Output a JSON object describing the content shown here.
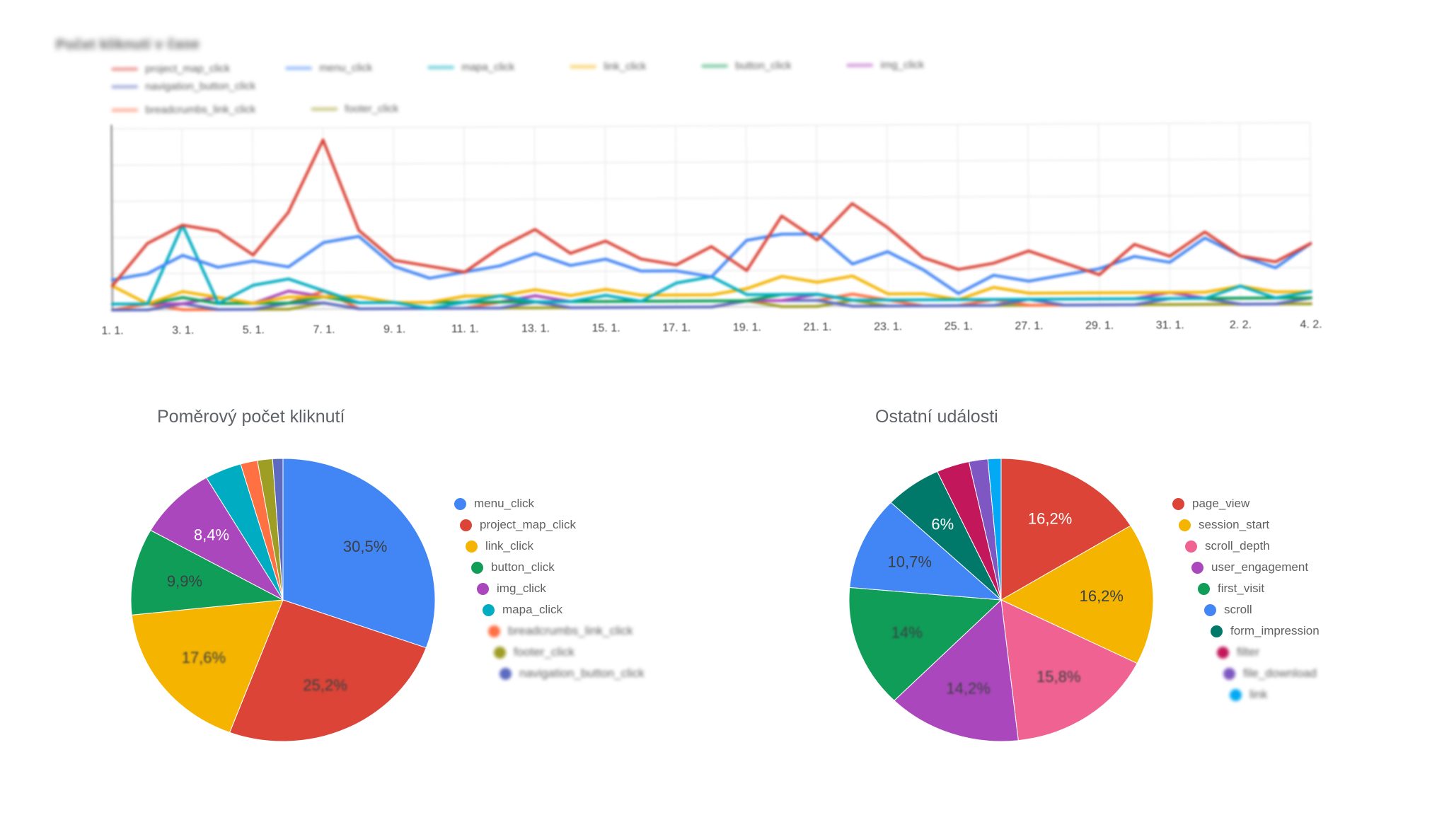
{
  "page": {
    "background": "#ffffff"
  },
  "chart_data": [
    {
      "id": "clicks-over-time",
      "type": "line",
      "title": "Počet kliknutí v čase",
      "xlabel": "",
      "ylabel": "",
      "ylim": [
        0,
        30
      ],
      "grid": true,
      "legend_position": "top",
      "x": [
        "1. 1.",
        "2. 1.",
        "3. 1.",
        "4. 1.",
        "5. 1.",
        "6. 1.",
        "7. 1.",
        "8. 1.",
        "9. 1.",
        "10. 1.",
        "11. 1.",
        "12. 1.",
        "13. 1.",
        "14. 1.",
        "15. 1.",
        "16. 1.",
        "17. 1.",
        "18. 1.",
        "19. 1.",
        "20. 1.",
        "21. 1.",
        "22. 1.",
        "23. 1.",
        "24. 1.",
        "25. 1.",
        "26. 1.",
        "27. 1.",
        "28. 1.",
        "29. 1.",
        "30. 1.",
        "31. 1.",
        "1. 2.",
        "2. 2.",
        "3. 2.",
        "4. 2."
      ],
      "x_tick_labels": [
        "1. 1.",
        "3. 1.",
        "5. 1.",
        "7. 1.",
        "9. 1.",
        "11. 1.",
        "13. 1.",
        "15. 1.",
        "17. 1.",
        "19. 1.",
        "21. 1.",
        "23. 1.",
        "25. 1.",
        "27. 1.",
        "29. 1.",
        "31. 1.",
        "2. 2.",
        "4. 2."
      ],
      "series": [
        {
          "name": "project_map_click",
          "color": "#DB4437",
          "values": [
            4,
            11,
            14,
            13,
            9,
            16,
            28,
            13,
            8,
            7,
            6,
            10,
            13,
            9,
            11,
            8,
            7,
            10,
            6,
            15,
            11,
            17,
            13,
            8,
            6,
            7,
            9,
            7,
            5,
            10,
            8,
            12,
            8,
            7,
            10
          ]
        },
        {
          "name": "menu_click",
          "color": "#4285F4",
          "values": [
            5,
            6,
            9,
            7,
            8,
            7,
            11,
            12,
            7,
            5,
            6,
            7,
            9,
            7,
            8,
            6,
            6,
            5,
            11,
            12,
            12,
            7,
            9,
            6,
            2,
            5,
            4,
            5,
            6,
            8,
            7,
            11,
            8,
            6,
            10
          ]
        },
        {
          "name": "mapa_click",
          "color": "#00ACC1",
          "values": [
            1,
            1,
            14,
            1,
            4,
            5,
            3,
            1,
            1,
            0,
            1,
            2,
            1,
            1,
            2,
            1,
            4,
            5,
            2,
            2,
            2,
            1,
            1,
            1,
            1,
            1,
            1,
            1,
            1,
            1,
            1,
            1,
            3,
            1,
            2
          ]
        },
        {
          "name": "link_click",
          "color": "#F4B400",
          "values": [
            4,
            1,
            3,
            2,
            1,
            2,
            2,
            2,
            1,
            1,
            2,
            2,
            3,
            2,
            3,
            2,
            2,
            2,
            3,
            5,
            4,
            5,
            2,
            2,
            1,
            3,
            2,
            2,
            2,
            2,
            2,
            2,
            3,
            2,
            2
          ]
        },
        {
          "name": "button_click",
          "color": "#0F9D58",
          "values": [
            1,
            1,
            2,
            1,
            1,
            1,
            2,
            1,
            1,
            1,
            1,
            1,
            1,
            1,
            1,
            1,
            1,
            1,
            1,
            2,
            2,
            1,
            1,
            1,
            1,
            1,
            1,
            1,
            1,
            1,
            1,
            1,
            1,
            1,
            1
          ]
        },
        {
          "name": "img_click",
          "color": "#AB47BC",
          "values": [
            1,
            1,
            1,
            2,
            1,
            3,
            2,
            1,
            1,
            1,
            1,
            1,
            2,
            1,
            1,
            1,
            1,
            1,
            1,
            1,
            2,
            1,
            1,
            1,
            1,
            1,
            1,
            1,
            1,
            1,
            2,
            1,
            1,
            1,
            1
          ]
        },
        {
          "name": "navigation_button_click",
          "color": "#5C6BC0",
          "values": [
            0,
            0,
            1,
            0,
            0,
            1,
            1,
            0,
            0,
            0,
            0,
            0,
            1,
            0,
            0,
            0,
            0,
            0,
            1,
            1,
            1,
            0,
            0,
            0,
            0,
            0,
            1,
            0,
            0,
            0,
            1,
            1,
            0,
            0,
            1
          ]
        },
        {
          "name": "breadcrumbs_link_click",
          "color": "#FF7043",
          "values": [
            0,
            1,
            0,
            0,
            0,
            1,
            3,
            0,
            0,
            0,
            0,
            1,
            1,
            0,
            0,
            0,
            0,
            0,
            1,
            1,
            1,
            2,
            1,
            0,
            0,
            1,
            0,
            0,
            0,
            0,
            1,
            1,
            0,
            0,
            1
          ]
        },
        {
          "name": "footer_click",
          "color": "#9E9D24",
          "values": [
            0,
            0,
            1,
            0,
            0,
            0,
            1,
            0,
            0,
            0,
            0,
            0,
            0,
            0,
            0,
            0,
            0,
            0,
            1,
            0,
            0,
            1,
            0,
            0,
            0,
            0,
            0,
            0,
            0,
            0,
            0,
            0,
            0,
            0,
            0
          ]
        }
      ]
    },
    {
      "id": "click-share",
      "type": "pie",
      "title": "Poměrový počet kliknutí",
      "legend_position": "right",
      "slices": [
        {
          "name": "menu_click",
          "color": "#4285F4",
          "value": 30.5,
          "label": "30,5%",
          "label_light": false,
          "label_blur": false,
          "legend_blur": false
        },
        {
          "name": "project_map_click",
          "color": "#DB4437",
          "value": 25.2,
          "label": "25,2%",
          "label_light": false,
          "label_blur": true,
          "legend_blur": false
        },
        {
          "name": "link_click",
          "color": "#F4B400",
          "value": 17.6,
          "label": "17,6%",
          "label_light": false,
          "label_blur": true,
          "legend_blur": false
        },
        {
          "name": "button_click",
          "color": "#0F9D58",
          "value": 9.9,
          "label": "9,9%",
          "label_light": false,
          "label_blur": false,
          "legend_blur": false
        },
        {
          "name": "img_click",
          "color": "#AB47BC",
          "value": 8.4,
          "label": "8,4%",
          "label_light": true,
          "label_blur": false,
          "legend_blur": false
        },
        {
          "name": "mapa_click",
          "color": "#00ACC1",
          "value": 3.9,
          "label": "",
          "label_light": false,
          "label_blur": false,
          "legend_blur": false
        },
        {
          "name": "breadcrumbs_link_click",
          "color": "#FF7043",
          "value": 1.8,
          "label": "",
          "label_light": false,
          "label_blur": false,
          "legend_blur": true
        },
        {
          "name": "footer_click",
          "color": "#9E9D24",
          "value": 1.6,
          "label": "",
          "label_light": false,
          "label_blur": false,
          "legend_blur": true
        },
        {
          "name": "navigation_button_click",
          "color": "#5C6BC0",
          "value": 1.1,
          "label": "",
          "label_light": false,
          "label_blur": false,
          "legend_blur": true
        }
      ]
    },
    {
      "id": "other-events",
      "type": "pie",
      "title": "Ostatní události",
      "legend_position": "right",
      "slices": [
        {
          "name": "page_view",
          "color": "#DB4437",
          "value": 16.2,
          "label": "16,2%",
          "label_light": true,
          "label_blur": false,
          "legend_blur": false
        },
        {
          "name": "session_start",
          "color": "#F4B400",
          "value": 16.2,
          "label": "16,2%",
          "label_light": false,
          "label_blur": false,
          "legend_blur": false
        },
        {
          "name": "scroll_depth",
          "color": "#F06292",
          "value": 15.8,
          "label": "15,8%",
          "label_light": false,
          "label_blur": true,
          "legend_blur": false
        },
        {
          "name": "user_engagement",
          "color": "#AB47BC",
          "value": 14.2,
          "label": "14,2%",
          "label_light": false,
          "label_blur": true,
          "legend_blur": false
        },
        {
          "name": "first_visit",
          "color": "#0F9D58",
          "value": 14,
          "label": "14%",
          "label_light": false,
          "label_blur": true,
          "legend_blur": false
        },
        {
          "name": "scroll",
          "color": "#4285F4",
          "value": 10.7,
          "label": "10,7%",
          "label_light": false,
          "label_blur": false,
          "legend_blur": false
        },
        {
          "name": "form_impression",
          "color": "#00796B",
          "value": 6,
          "label": "6%",
          "label_light": true,
          "label_blur": false,
          "legend_blur": false
        },
        {
          "name": "filter",
          "color": "#C2185B",
          "value": 3.5,
          "label": "",
          "label_light": false,
          "label_blur": false,
          "legend_blur": true
        },
        {
          "name": "file_download",
          "color": "#7E57C2",
          "value": 2,
          "label": "",
          "label_light": false,
          "label_blur": false,
          "legend_blur": true
        },
        {
          "name": "link",
          "color": "#03A9F4",
          "value": 1.4,
          "label": "",
          "label_light": false,
          "label_blur": false,
          "legend_blur": true
        }
      ]
    }
  ]
}
